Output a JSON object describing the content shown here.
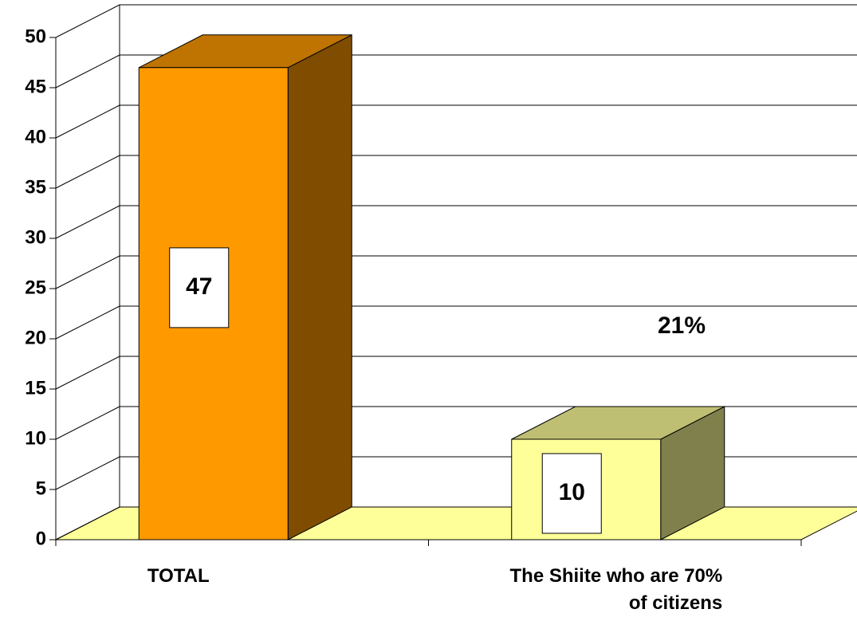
{
  "chart_data": {
    "type": "bar3d",
    "categories": [
      "TOTAL",
      "The Shiite who are 70% of citizens"
    ],
    "values": [
      47,
      10
    ],
    "colors": [
      "#FF9900",
      "#FFFF99"
    ],
    "annotation": "21%",
    "ylim": [
      0,
      50
    ],
    "yticks": [
      0,
      5,
      10,
      15,
      20,
      25,
      30,
      35,
      40,
      45,
      50
    ],
    "grid": true
  }
}
